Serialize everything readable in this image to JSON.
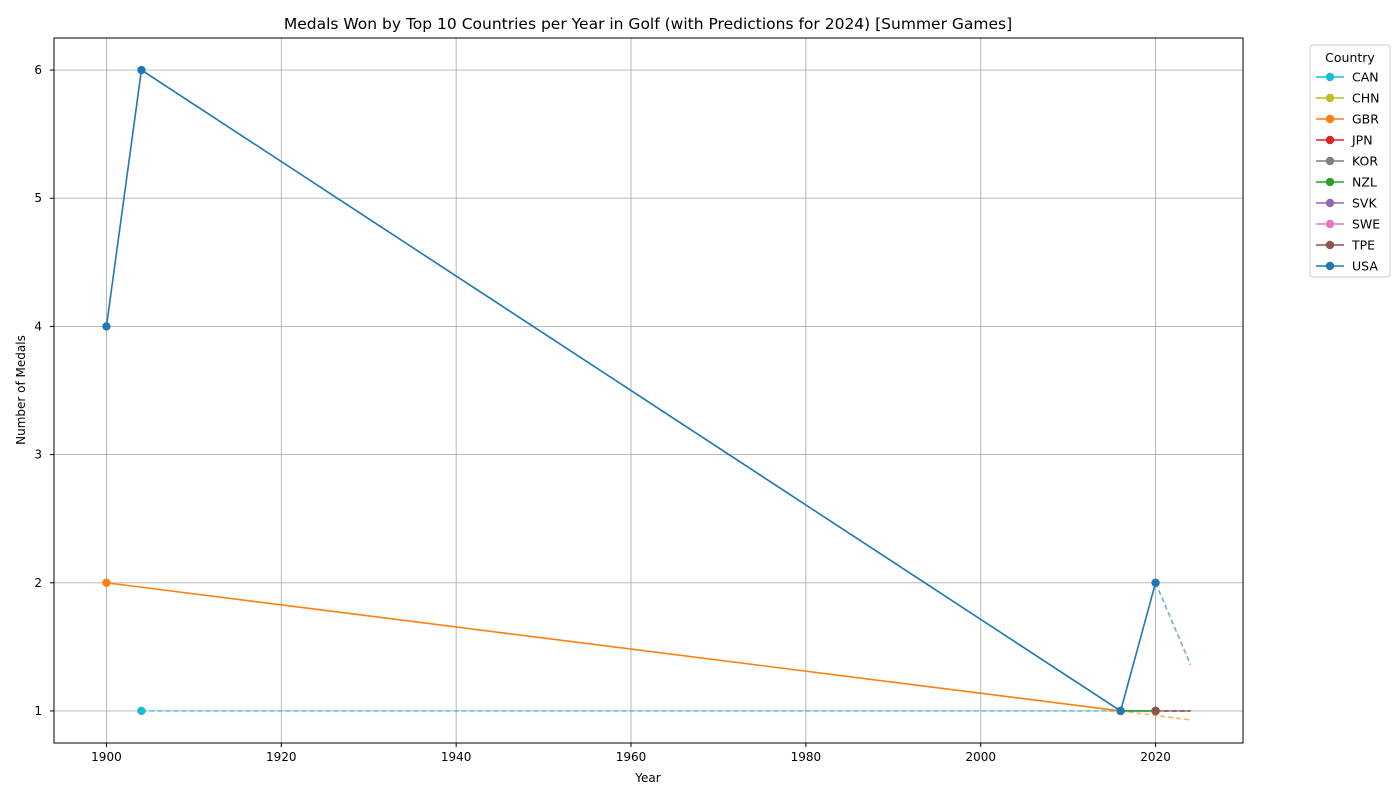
{
  "chart_data": {
    "type": "line",
    "title": "Medals Won by Top 10 Countries per Year in Golf (with Predictions for 2024) [Summer Games]",
    "xlabel": "Year",
    "ylabel": "Number of Medals",
    "xlim": [
      1894,
      2030
    ],
    "ylim": [
      0.75,
      6.25
    ],
    "xticks": [
      1900,
      1920,
      1940,
      1960,
      1980,
      2000,
      2020
    ],
    "yticks": [
      1,
      2,
      3,
      4,
      5,
      6
    ],
    "grid": true,
    "legend_title": "Country",
    "legend_placement": "outside-top-right",
    "series": [
      {
        "name": "CAN",
        "color": "#17becf",
        "x": [
          1904
        ],
        "y": [
          1
        ],
        "prediction": {
          "x": [
            1904,
            2024
          ],
          "y": [
            1,
            1
          ]
        }
      },
      {
        "name": "CHN",
        "color": "#bcbd22",
        "x": [
          2020
        ],
        "y": [
          1
        ],
        "prediction": {
          "x": [
            2020,
            2024
          ],
          "y": [
            1,
            1
          ]
        }
      },
      {
        "name": "GBR",
        "color": "#ff7f0e",
        "x": [
          1900,
          2016
        ],
        "y": [
          2,
          1
        ],
        "prediction": {
          "x": [
            2016,
            2024
          ],
          "y": [
            1,
            0.93
          ]
        }
      },
      {
        "name": "JPN",
        "color": "#d62728",
        "x": [
          2020
        ],
        "y": [
          1
        ],
        "prediction": {
          "x": [
            2020,
            2024
          ],
          "y": [
            1,
            1
          ]
        }
      },
      {
        "name": "KOR",
        "color": "#7f7f7f",
        "x": [
          2016
        ],
        "y": [
          1
        ],
        "prediction": {
          "x": [
            2016,
            2024
          ],
          "y": [
            1,
            1
          ]
        }
      },
      {
        "name": "NZL",
        "color": "#2ca02c",
        "x": [
          2016,
          2020
        ],
        "y": [
          1,
          1
        ],
        "prediction": {
          "x": [
            2020,
            2024
          ],
          "y": [
            1,
            1
          ]
        }
      },
      {
        "name": "SVK",
        "color": "#9467bd",
        "x": [
          2020
        ],
        "y": [
          1
        ],
        "prediction": {
          "x": [
            2020,
            2024
          ],
          "y": [
            1,
            1
          ]
        }
      },
      {
        "name": "SWE",
        "color": "#e377c2",
        "x": [
          2016
        ],
        "y": [
          1
        ],
        "prediction": {
          "x": [
            2016,
            2024
          ],
          "y": [
            1,
            1
          ]
        }
      },
      {
        "name": "TPE",
        "color": "#8c564b",
        "x": [
          2020
        ],
        "y": [
          1
        ],
        "prediction": {
          "x": [
            2020,
            2024
          ],
          "y": [
            1,
            1
          ]
        }
      },
      {
        "name": "USA",
        "color": "#1f77b4",
        "x": [
          1900,
          1904,
          2016,
          2020
        ],
        "y": [
          4,
          6,
          1,
          2
        ],
        "prediction": {
          "x": [
            2020,
            2024
          ],
          "y": [
            2,
            1.36
          ]
        }
      }
    ]
  }
}
